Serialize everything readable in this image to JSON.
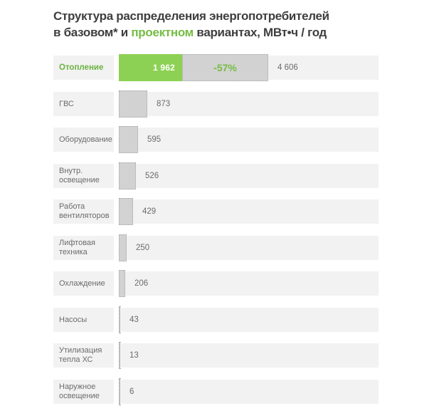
{
  "title": {
    "line1": "Структура  распределения энергопотребителей",
    "line2_pre": "в базовом* и ",
    "line2_green": "проектном",
    "line2_post": " вариантах, МВт•ч / год"
  },
  "colors": {
    "accent_green_bar": "#8dd154",
    "accent_green_text": "#76bc43",
    "gray_bar": "#d2d2d2",
    "row_background": "#f2f2f2",
    "text_gray": "#6b6b6b",
    "title_color": "#3e3e3e"
  },
  "chart_data": {
    "type": "bar",
    "title": "Структура распределения энергопотребителей в базовом* и проектном вариантах, МВт•ч / год",
    "unit": "МВт•ч / год",
    "orientation": "horizontal",
    "series_note": "green solid = проектный вариант, gray dotted = базовый вариант",
    "categories": [
      "Отопление",
      "ГВС",
      "Оборудование",
      "Внутр. освещение",
      "Работа вентиляторов",
      "Лифтовая техника",
      "Охлаждение",
      "Насосы",
      "Утилизация тепла ХС",
      "Наружное освещение"
    ],
    "rows": [
      {
        "label": "Отопление",
        "project_value": 1962,
        "project_label": "1 962",
        "base_value": 4606,
        "base_label": "4 606",
        "change_label": "-57%",
        "highlight": true
      },
      {
        "label": "ГВС",
        "project_value": 873,
        "value_label": "873",
        "highlight": false
      },
      {
        "label": "Оборудование",
        "project_value": 595,
        "value_label": "595",
        "highlight": false
      },
      {
        "label": "Внутр.\nосвещение",
        "project_value": 526,
        "value_label": "526",
        "highlight": false
      },
      {
        "label": "Работа\nвентиляторов",
        "project_value": 429,
        "value_label": "429",
        "highlight": false
      },
      {
        "label": "Лифтовая\nтехника",
        "project_value": 250,
        "value_label": "250",
        "highlight": false
      },
      {
        "label": "Охлаждение",
        "project_value": 206,
        "value_label": "206",
        "highlight": false
      },
      {
        "label": "Насосы",
        "project_value": 43,
        "value_label": "43",
        "highlight": false
      },
      {
        "label": "Утилизация\nтепла ХС",
        "project_value": 13,
        "value_label": "13",
        "highlight": false
      },
      {
        "label": "Наружное\nосвещение",
        "project_value": 6,
        "value_label": "6",
        "highlight": false
      }
    ]
  }
}
